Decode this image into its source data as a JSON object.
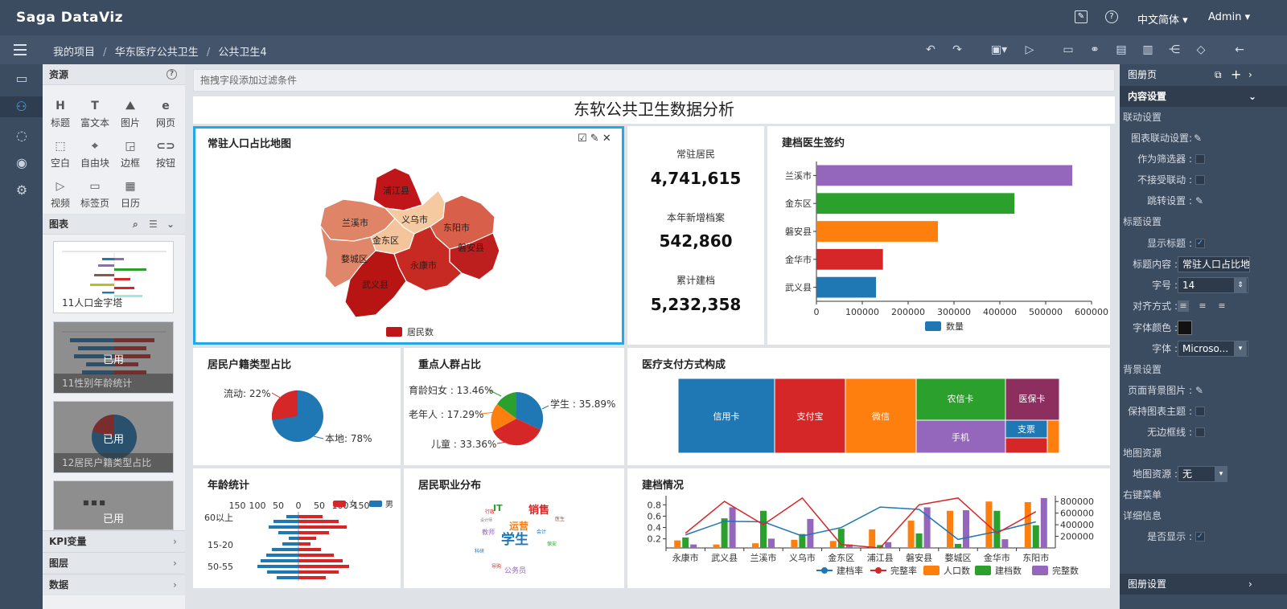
{
  "app": {
    "logo": "Saga DataViz",
    "lang": "中文简体",
    "user": "Admin"
  },
  "breadcrumb": [
    "我的项目",
    "华东医疗公共卫生",
    "公共卫生4"
  ],
  "resources": {
    "title": "资源",
    "tools": [
      "标题",
      "富文本",
      "图片",
      "网页",
      "空白",
      "自由块",
      "边框",
      "按钮",
      "视频",
      "标签页",
      "日历"
    ],
    "charts_title": "图表",
    "thumbs": [
      {
        "label": "11人口金字塔",
        "used": false
      },
      {
        "label": "11性别年龄统计",
        "used": true
      },
      {
        "label": "12居民户籍类型占比",
        "used": true
      },
      {
        "label": "",
        "used": true
      }
    ],
    "used_label": "已用",
    "accordions": [
      "KPI变量",
      "图层",
      "数据"
    ]
  },
  "filter_placeholder": "拖拽字段添加过滤条件",
  "dashboard_title": "东软公共卫生数据分析",
  "map_card": {
    "title": "常驻人口占比地图",
    "legend": "居民数",
    "regions": [
      {
        "name": "浦江县",
        "color": "#c0161a"
      },
      {
        "name": "兰溪市",
        "color": "#e08468"
      },
      {
        "name": "义乌市",
        "color": "#f6caa0"
      },
      {
        "name": "东阳市",
        "color": "#d85f49"
      },
      {
        "name": "金东区",
        "color": "#f4c49c"
      },
      {
        "name": "磐安县",
        "color": "#bd1e1e"
      },
      {
        "name": "婺城区",
        "color": "#e0876b"
      },
      {
        "name": "永康市",
        "color": "#c72a22"
      },
      {
        "name": "武义县",
        "color": "#b71414"
      }
    ]
  },
  "kpis": [
    {
      "label": "常驻居民",
      "value": "4,741,615"
    },
    {
      "label": "本年新增档案",
      "value": "542,860"
    },
    {
      "label": "累计建档",
      "value": "5,232,358"
    }
  ],
  "doctor_card": {
    "title": "建档医生签约",
    "legend": "数量",
    "color": "#9467bd",
    "ticks": [
      "0",
      "100000",
      "200000",
      "300000",
      "400000",
      "500000",
      "600000"
    ]
  },
  "household_card": {
    "title": "居民户籍类型占比",
    "labels": [
      "流动: 22%",
      "本地: 78%"
    ]
  },
  "key_groups_card": {
    "title": "重点人群占比",
    "labels": [
      "育龄妇女 : 13.46%",
      "老年人 : 17.29%",
      "儿童 : 33.36%",
      "学生 : 35.89%"
    ]
  },
  "payment_card": {
    "title": "医疗支付方式构成",
    "labels": [
      "信用卡",
      "支付宝",
      "微信",
      "农信卡",
      "医保卡",
      "手机",
      "支票"
    ]
  },
  "age_card": {
    "title": "年龄统计",
    "legend_f": "女",
    "legend_m": "男",
    "ticks": [
      "150",
      "100",
      "50",
      "0",
      "50",
      "100",
      "150"
    ],
    "cats": [
      "60以上",
      "15-20",
      "50-55"
    ]
  },
  "occupation_card": {
    "title": "居民职业分布",
    "words": [
      "销售",
      "学生",
      "运营",
      "IT",
      "教师",
      "公务员",
      "会计",
      "设计师",
      "医生",
      "科研",
      "导购",
      "行政",
      "保安"
    ]
  },
  "records_card": {
    "title": "建档情况",
    "left_ticks": [
      "0.2",
      "0.4",
      "0.6",
      "0.8"
    ],
    "right_ticks": [
      "200000",
      "400000",
      "600000",
      "800000"
    ],
    "legend": [
      "建档率",
      "完整率",
      "人口数",
      "建档数",
      "完整数"
    ]
  },
  "chart_data": [
    {
      "type": "bar",
      "title": "建档医生签约",
      "categories": [
        "武义县",
        "金华市",
        "磐安县",
        "金东区",
        "兰溪市"
      ],
      "series": [
        {
          "name": "数量",
          "values": [
            130000,
            145000,
            265000,
            432000,
            558000
          ]
        }
      ],
      "xlim": [
        0,
        600000
      ]
    },
    {
      "type": "pie",
      "title": "居民户籍类型占比",
      "categories": [
        "本地",
        "流动"
      ],
      "values": [
        78,
        22
      ]
    },
    {
      "type": "pie",
      "title": "重点人群占比",
      "categories": [
        "学生",
        "儿童",
        "老年人",
        "育龄妇女"
      ],
      "values": [
        35.89,
        33.36,
        17.29,
        13.46
      ]
    },
    {
      "type": "treemap",
      "title": "医疗支付方式构成",
      "categories": [
        "信用卡",
        "支付宝",
        "微信",
        "农信卡",
        "医保卡",
        "手机",
        "支票"
      ]
    },
    {
      "type": "bar",
      "title": "年龄统计",
      "categories": [
        "60以上",
        "15-20",
        "50-55"
      ],
      "series": [
        {
          "name": "女",
          "values": [
            60,
            90,
            75
          ]
        },
        {
          "name": "男",
          "values": [
            55,
            80,
            70
          ]
        }
      ]
    },
    {
      "type": "line",
      "title": "建档情况",
      "categories": [
        "永康市",
        "武义县",
        "兰溪市",
        "义乌市",
        "金东区",
        "浦江县",
        "磐安县",
        "婺城区",
        "金华市",
        "东阳市"
      ],
      "series": [
        {
          "name": "人口数",
          "values": [
            130000,
            60000,
            80000,
            140000,
            120000,
            320000,
            470000,
            640000,
            800000,
            790000
          ]
        },
        {
          "name": "建档数",
          "values": [
            180000,
            510000,
            640000,
            240000,
            330000,
            50000,
            250000,
            70000,
            640000,
            390000
          ]
        },
        {
          "name": "完整数",
          "values": [
            60000,
            700000,
            160000,
            500000,
            60000,
            100000,
            700000,
            650000,
            150000,
            860000
          ]
        },
        {
          "name": "建档率",
          "values": [
            0.27,
            0.51,
            0.5,
            0.25,
            0.4,
            0.76,
            0.72,
            0.19,
            0.33,
            0.5
          ]
        },
        {
          "name": "完整率",
          "values": [
            0.3,
            0.86,
            0.45,
            0.92,
            0.1,
            0.04,
            0.8,
            0.92,
            0.3,
            0.68
          ]
        }
      ]
    }
  ],
  "right_panel": {
    "header": "图册页",
    "section": "内容设置",
    "rows": [
      {
        "type": "sec",
        "label": "联动设置"
      },
      {
        "type": "edit",
        "label": "图表联动设置:"
      },
      {
        "type": "check",
        "label": "作为筛选器 :"
      },
      {
        "type": "check",
        "label": "不接受联动 :"
      },
      {
        "type": "edit",
        "label": "跳转设置 :"
      },
      {
        "type": "sec",
        "label": "标题设置"
      },
      {
        "type": "checked",
        "label": "显示标题 :"
      },
      {
        "type": "input",
        "label": "标题内容 :",
        "value": "常驻人口占比地"
      },
      {
        "type": "input",
        "label": "字号 :",
        "value": "14"
      },
      {
        "type": "align",
        "label": "对齐方式 :"
      },
      {
        "type": "color",
        "label": "字体颜色 :"
      },
      {
        "type": "input",
        "label": "字体 :",
        "value": "Microso..."
      },
      {
        "type": "sec",
        "label": "背景设置"
      },
      {
        "type": "edit",
        "label": "页面背景图片 :"
      },
      {
        "type": "check",
        "label": "保持图表主题 :"
      },
      {
        "type": "check",
        "label": "无边框线 :"
      },
      {
        "type": "sec",
        "label": "地图资源"
      },
      {
        "type": "input",
        "label": "地图资源 :",
        "value": "无"
      },
      {
        "type": "sec",
        "label": "右键菜单"
      },
      {
        "type": "sec",
        "label": "详细信息"
      },
      {
        "type": "checked",
        "label": "是否显示 :"
      }
    ],
    "footer": "图册设置"
  }
}
